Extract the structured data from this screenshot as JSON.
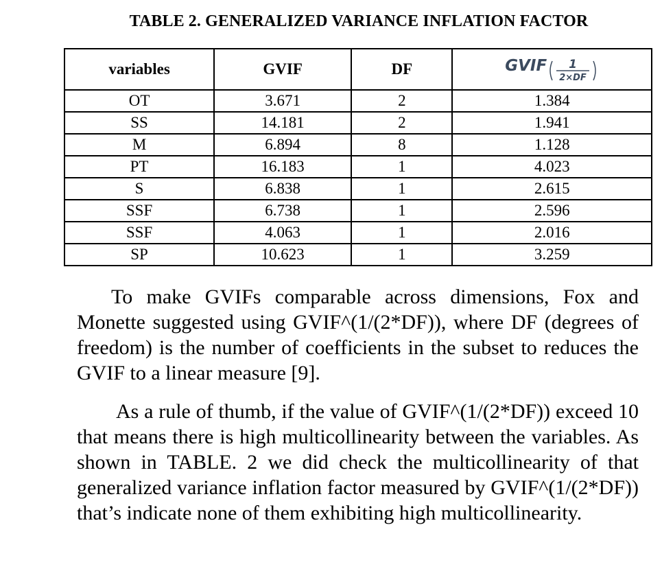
{
  "caption": "TABLE 2. GENERALIZED VARIANCE INFLATION FACTOR",
  "table": {
    "headers": [
      "variables",
      "GVIF",
      "DF"
    ],
    "formula_header": {
      "base": "GVIF",
      "numerator": "1",
      "denominator": "2×DF"
    },
    "rows": [
      [
        "OT",
        "3.671",
        "2",
        "1.384"
      ],
      [
        "SS",
        "14.181",
        "2",
        "1.941"
      ],
      [
        "M",
        "6.894",
        "8",
        "1.128"
      ],
      [
        "PT",
        "16.183",
        "1",
        "4.023"
      ],
      [
        "S",
        "6.838",
        "1",
        "2.615"
      ],
      [
        "SSF",
        "6.738",
        "1",
        "2.596"
      ],
      [
        "SSF",
        "4.063",
        "1",
        "2.016"
      ],
      [
        "SP",
        "10.623",
        "1",
        "3.259"
      ]
    ]
  },
  "paragraphs": [
    "To make GVIFs comparable across dimensions, Fox and Monette suggested using GVIF^(1/(2*DF)), where DF (degrees of freedom) is the number of coefficients in the subset to reduces the GVIF to a linear measure [9].",
    "As a rule of thumb, if the value of GVIF^(1/(2*DF)) exceed 10 that means there is high multicollinearity between the variables. As shown in TABLE. 2 we did check the multicollinearity of that generalized variance inflation factor measured by GVIF^(1/(2*DF)) that’s indicate none of them exhibiting high multicollinearity."
  ]
}
